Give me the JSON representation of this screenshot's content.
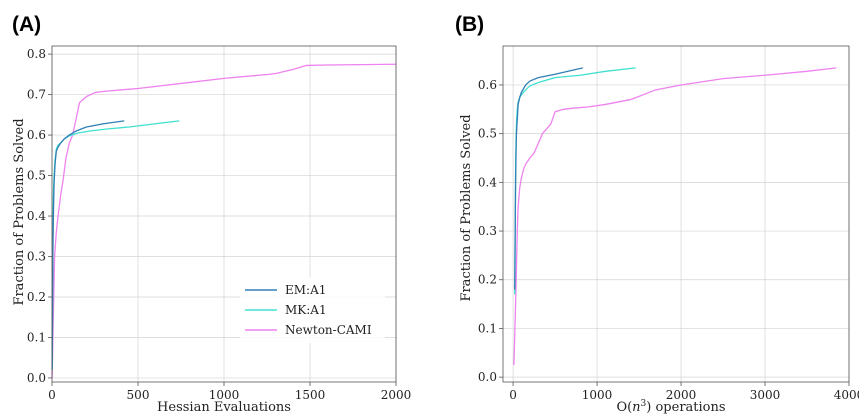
{
  "colors": {
    "EM:A1": "#2f7fb5",
    "MK:A1": "#40e0d0",
    "Newton-CAMI": "#ee82ee"
  },
  "chart_data": [
    {
      "type": "line",
      "panel_label": "(A)",
      "xlabel": "Hessian Evaluations",
      "ylabel": "Fraction of Problems Solved",
      "xlim": [
        0,
        2000
      ],
      "ylim": [
        -0.01,
        0.82
      ],
      "xticks": [
        0,
        500,
        1000,
        1500,
        2000
      ],
      "xtick_labels": [
        "0",
        "500",
        "1000",
        "1500",
        "2000"
      ],
      "yticks": [
        0.0,
        0.1,
        0.2,
        0.3,
        0.4,
        0.5,
        0.6,
        0.7,
        0.8
      ],
      "ytick_labels": [
        "0.0",
        "0.1",
        "0.2",
        "0.3",
        "0.4",
        "0.5",
        "0.6",
        "0.7",
        "0.8"
      ],
      "legend": {
        "position": "lower-right",
        "entries": [
          "EM:A1",
          "MK:A1",
          "Newton-CAMI"
        ]
      },
      "series": [
        {
          "name": "EM:A1",
          "x": [
            1,
            3,
            5,
            8,
            12,
            18,
            25,
            35,
            50,
            70,
            100,
            140,
            200,
            300,
            420
          ],
          "y": [
            0.02,
            0.15,
            0.3,
            0.4,
            0.48,
            0.53,
            0.56,
            0.57,
            0.58,
            0.59,
            0.6,
            0.61,
            0.62,
            0.628,
            0.635
          ]
        },
        {
          "name": "MK:A1",
          "x": [
            1,
            3,
            5,
            8,
            12,
            18,
            25,
            35,
            50,
            70,
            100,
            150,
            220,
            320,
            450,
            600,
            740
          ],
          "y": [
            0.02,
            0.2,
            0.35,
            0.45,
            0.5,
            0.54,
            0.565,
            0.575,
            0.58,
            0.59,
            0.598,
            0.605,
            0.61,
            0.615,
            0.62,
            0.628,
            0.635
          ]
        },
        {
          "name": "Newton-CAMI",
          "x": [
            1,
            5,
            10,
            15,
            25,
            35,
            50,
            65,
            80,
            100,
            120,
            140,
            160,
            200,
            250,
            300,
            500,
            800,
            1000,
            1260,
            1300,
            1400,
            1480,
            1600,
            1800,
            2000
          ],
          "y": [
            0.0,
            0.1,
            0.2,
            0.3,
            0.36,
            0.4,
            0.45,
            0.49,
            0.54,
            0.58,
            0.6,
            0.64,
            0.68,
            0.695,
            0.705,
            0.708,
            0.715,
            0.73,
            0.74,
            0.75,
            0.752,
            0.762,
            0.772,
            0.773,
            0.774,
            0.775
          ]
        }
      ]
    },
    {
      "type": "line",
      "panel_label": "(B)",
      "xlabel": "O(n3) operations",
      "xlabel_base": "O(",
      "xlabel_var": "n",
      "xlabel_sup": "3",
      "xlabel_tail": ") operations",
      "ylabel": "Fraction of Problems Solved",
      "xlim": [
        -120,
        4000
      ],
      "ylim": [
        -0.01,
        0.68
      ],
      "xticks": [
        0,
        1000,
        2000,
        3000,
        4000
      ],
      "xtick_labels": [
        "0",
        "1000",
        "2000",
        "3000",
        "4000"
      ],
      "yticks": [
        0.0,
        0.1,
        0.2,
        0.3,
        0.4,
        0.5,
        0.6
      ],
      "ytick_labels": [
        "0.0",
        "0.1",
        "0.2",
        "0.3",
        "0.4",
        "0.5",
        "0.6"
      ],
      "series": [
        {
          "name": "EM:A1",
          "x": [
            20,
            25,
            30,
            35,
            40,
            50,
            60,
            80,
            100,
            150,
            200,
            300,
            500,
            700,
            830
          ],
          "y": [
            0.18,
            0.3,
            0.4,
            0.46,
            0.5,
            0.53,
            0.56,
            0.575,
            0.585,
            0.6,
            0.608,
            0.615,
            0.622,
            0.63,
            0.635
          ]
        },
        {
          "name": "MK:A1",
          "x": [
            20,
            25,
            30,
            35,
            40,
            50,
            60,
            80,
            100,
            150,
            200,
            300,
            500,
            800,
            1100,
            1460
          ],
          "y": [
            0.17,
            0.3,
            0.42,
            0.48,
            0.52,
            0.55,
            0.565,
            0.575,
            0.58,
            0.59,
            0.598,
            0.605,
            0.615,
            0.62,
            0.628,
            0.635
          ]
        },
        {
          "name": "Newton-CAMI",
          "x": [
            10,
            30,
            50,
            60,
            80,
            100,
            130,
            160,
            200,
            250,
            300,
            350,
            400,
            450,
            500,
            600,
            700,
            900,
            1100,
            1400,
            1700,
            2000,
            2500,
            3000,
            3500,
            3850
          ],
          "y": [
            0.025,
            0.15,
            0.3,
            0.35,
            0.39,
            0.41,
            0.43,
            0.44,
            0.45,
            0.46,
            0.48,
            0.5,
            0.51,
            0.52,
            0.545,
            0.55,
            0.552,
            0.555,
            0.56,
            0.57,
            0.59,
            0.6,
            0.613,
            0.62,
            0.628,
            0.635
          ]
        }
      ]
    }
  ]
}
